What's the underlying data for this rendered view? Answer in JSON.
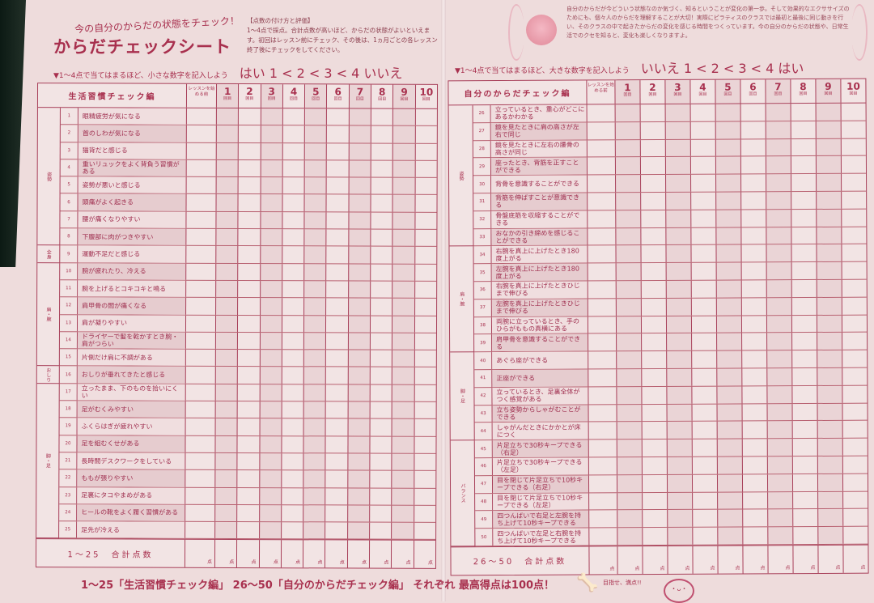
{
  "header": {
    "subtitle": "今の自分のからだの状態をチェック！",
    "title": "からだチェックシート",
    "howto_title": "【点数の付け方と評価】",
    "howto_text": "1～4点で採点。合計点数が高いほど、からだの状態がよいといえます。初回はレッスン前にチェック、その後は、1ヵ月ごとの各レッスン終了後にチェックをしてください。",
    "intro": "自分のからだが今どういう状態なのか気づく、知るということが変化の第一歩。そして効果的なエクササイズのためにも、個々人のからだを理解することが大切！実際にピラティスのクラスでは最初と最後に同じ動きを行い、そのクラスの中で起きたからだの変化を感じる時間をつくっています。今の自分のからだの状態や、日常生活でのクセを知ると、変化も楽しくなりますよ。"
  },
  "left": {
    "instruction": "▼1～4点で当てはまるほど、小さな数字を記入しよう",
    "scale": "はい 1 < 2 < 3 < 4 いいえ",
    "section": "生活習慣チェック編",
    "pre_label": "レッスンを始める前",
    "sessions": [
      "1",
      "2",
      "3",
      "4",
      "5",
      "6",
      "7",
      "8",
      "9",
      "10"
    ],
    "session_suffix": "回目",
    "groups": [
      {
        "label": "姿勢",
        "span": 8
      },
      {
        "label": "全身",
        "span": 1
      },
      {
        "label": "肩・腕",
        "span": 6
      },
      {
        "label": "おしり",
        "span": 1
      },
      {
        "label": "脚・足",
        "span": 9
      }
    ],
    "items": [
      "眼精疲労が気になる",
      "首のしわが気になる",
      "猫背だと感じる",
      "重いリュックをよく背負う習慣がある",
      "姿勢が悪いと感じる",
      "頭痛がよく起きる",
      "腰が痛くなりやすい",
      "下腹部に肉がつきやすい",
      "運動不足だと感じる",
      "腕が疲れたり、冷える",
      "腕を上げるとコキコキと鳴る",
      "肩甲骨の間が痛くなる",
      "肩が凝りやすい",
      "ドライヤーで髪を乾かすとき腕・肩がつらい",
      "片側だけ肩に不調がある",
      "おしりが垂れてきたと感じる",
      "立ったまま、下のものを拾いにくい",
      "足がむくみやすい",
      "ふくらはぎが疲れやすい",
      "足を組むくせがある",
      "長時間デスクワークをしている",
      "ももが張りやすい",
      "足裏にタコやまめがある",
      "ヒールの靴をよく履く習慣がある",
      "足先が冷える"
    ],
    "total_label": "1～25　合計点数",
    "point": "点"
  },
  "right": {
    "instruction": "▼1～4点で当てはまるほど、大きな数字を記入しよう",
    "scale": "いいえ 1 < 2 < 3 < 4 はい",
    "section": "自分のからだチェック編",
    "pre_label": "レッスンを始める前",
    "groups": [
      {
        "label": "姿勢",
        "span": 8
      },
      {
        "label": "肩・腕",
        "span": 6
      },
      {
        "label": "脚・足",
        "span": 5
      },
      {
        "label": "バランス",
        "span": 6
      }
    ],
    "items": [
      "立っているとき、重心がどこにあるかわかる",
      "鏡を見たときに肩の高さが左右で同じ",
      "鏡を見たときに左右の腰骨の高さが同じ",
      "座ったとき、背筋を正すことができる",
      "背骨を意識することができる",
      "背筋を伸ばすことが意識できる",
      "骨盤底筋を収縮することができる",
      "おなかの引き締めを感じることができる",
      "右腕を真上に上げたとき180度上がる",
      "左腕を真上に上げたとき180度上がる",
      "右腕を真上に上げたときひじまで伸びる",
      "左腕を真上に上げたときひじまで伸びる",
      "両腕に立っているとき、手のひらがももの真横にある",
      "肩甲骨を意識することができる",
      "あぐら座ができる",
      "正座ができる",
      "立っているとき、足裏全体がつく感覚がある",
      "立ち姿勢からしゃがむことができる",
      "しゃがんだときにかかとが床につく",
      "片足立ちで30秒キープできる（右足）",
      "片足立ちで30秒キープできる（左足）",
      "目を閉じて片足立ちで10秒キープできる（右足）",
      "目を閉じて片足立ちで10秒キープできる（左足）",
      "四つんばいで右足と左腕を持ち上げて10秒キープできる",
      "四つんばいで左足と右腕を持ち上げて10秒キープできる"
    ],
    "total_label": "26～50　合計点数",
    "point": "点"
  },
  "footer": {
    "note": "1～25「生活習慣チェック編」 26～50「自分のからだチェック編」 それぞれ 最高得点は100点！",
    "bubble": "目指せ、満点!!"
  },
  "colors": {
    "ink": "#a8304e",
    "paper": "#eedcdc"
  }
}
